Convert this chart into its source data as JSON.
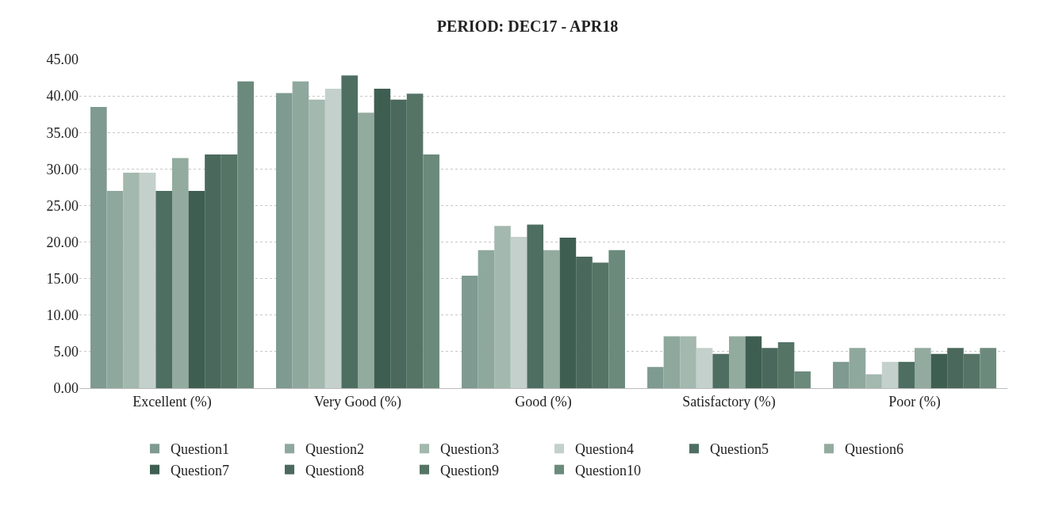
{
  "chart_data": {
    "type": "bar",
    "title": "PERIOD: DEC17 - APR18",
    "categories": [
      "Excellent (%)",
      "Very Good (%)",
      "Good (%)",
      "Satisfactory (%)",
      "Poor (%)"
    ],
    "series": [
      {
        "name": "Question1",
        "color": "#7f9a90",
        "values": [
          38.5,
          40.4,
          15.4,
          2.9,
          3.6
        ]
      },
      {
        "name": "Question2",
        "color": "#8fa89e",
        "values": [
          27.0,
          42.0,
          18.9,
          7.1,
          5.5
        ]
      },
      {
        "name": "Question3",
        "color": "#a3b8ae",
        "values": [
          29.5,
          39.5,
          22.2,
          7.1,
          1.9
        ]
      },
      {
        "name": "Question4",
        "color": "#c4d0cb",
        "values": [
          29.5,
          41.0,
          20.7,
          5.5,
          3.6
        ]
      },
      {
        "name": "Question5",
        "color": "#4e6e62",
        "values": [
          27.0,
          42.8,
          22.4,
          4.7,
          3.6
        ]
      },
      {
        "name": "Question6",
        "color": "#93ab9f",
        "values": [
          31.5,
          37.7,
          18.9,
          7.1,
          5.5
        ]
      },
      {
        "name": "Question7",
        "color": "#3f5e52",
        "values": [
          27.0,
          41.0,
          20.6,
          7.1,
          4.7
        ]
      },
      {
        "name": "Question8",
        "color": "#4a695c",
        "values": [
          32.0,
          39.5,
          18.0,
          5.5,
          5.5
        ]
      },
      {
        "name": "Question9",
        "color": "#557466",
        "values": [
          32.0,
          40.3,
          17.2,
          6.3,
          4.7
        ]
      },
      {
        "name": "Question10",
        "color": "#6b8a7c",
        "values": [
          42.0,
          32.0,
          18.9,
          2.3,
          5.5
        ]
      }
    ],
    "ylim": [
      0,
      45
    ],
    "yticks": [
      {
        "value": 0,
        "label": "0.00"
      },
      {
        "value": 5,
        "label": "5.00"
      },
      {
        "value": 10,
        "label": "10.00"
      },
      {
        "value": 15,
        "label": "15.00"
      },
      {
        "value": 20,
        "label": "20.00"
      },
      {
        "value": 25,
        "label": "25.00"
      },
      {
        "value": 30,
        "label": "30.00"
      },
      {
        "value": 35,
        "label": "35.00"
      },
      {
        "value": 40,
        "label": "40.00"
      },
      {
        "value": 45,
        "label": "45.00"
      }
    ],
    "grid": "y",
    "legend": "bottom"
  }
}
